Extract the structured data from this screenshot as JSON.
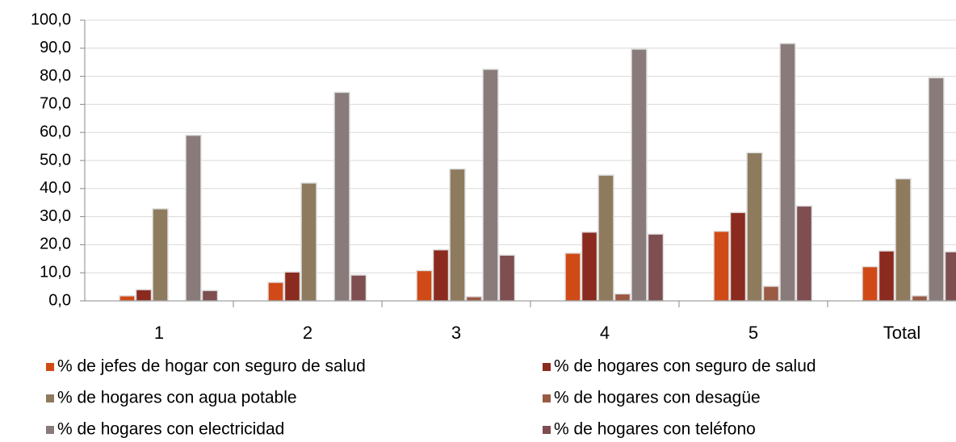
{
  "chart_data": {
    "type": "bar",
    "categories": [
      "1",
      "2",
      "3",
      "4",
      "5",
      "Total"
    ],
    "series": [
      {
        "name": "% de jefes de hogar con seguro de salud",
        "color": "#d04a18",
        "values": [
          1.8,
          6.6,
          10.8,
          17.0,
          24.8,
          12.2
        ]
      },
      {
        "name": "% de hogares con seguro de salud",
        "color": "#8b2a1e",
        "values": [
          4.0,
          10.3,
          18.2,
          24.5,
          31.5,
          17.8
        ]
      },
      {
        "name": "% de hogares con agua potable",
        "color": "#8e7b5e",
        "values": [
          32.8,
          42.0,
          47.0,
          44.8,
          52.8,
          43.5
        ]
      },
      {
        "name": "% de hogares con desagüe",
        "color": "#9a5a44",
        "values": [
          0,
          0,
          1.5,
          2.5,
          5.2,
          1.8
        ]
      },
      {
        "name": "% de hogares con electricidad",
        "color": "#8a7b7b",
        "values": [
          59.0,
          74.3,
          82.5,
          89.7,
          91.7,
          79.5
        ]
      },
      {
        "name": "% de hogares con teléfono",
        "color": "#7e4e50",
        "values": [
          3.7,
          9.2,
          16.3,
          23.8,
          33.8,
          17.5
        ]
      }
    ],
    "ylim": [
      0,
      100
    ],
    "yticks": [
      {
        "value": 0,
        "label": "0,0"
      },
      {
        "value": 10,
        "label": "10,0"
      },
      {
        "value": 20,
        "label": "20,0"
      },
      {
        "value": 30,
        "label": "30,0"
      },
      {
        "value": 40,
        "label": "40,0"
      },
      {
        "value": 50,
        "label": "50,0"
      },
      {
        "value": 60,
        "label": "60,0"
      },
      {
        "value": 70,
        "label": "70,0"
      },
      {
        "value": 80,
        "label": "80,0"
      },
      {
        "value": 90,
        "label": "90,0"
      },
      {
        "value": 100,
        "label": "100,0"
      }
    ],
    "grid": true
  }
}
